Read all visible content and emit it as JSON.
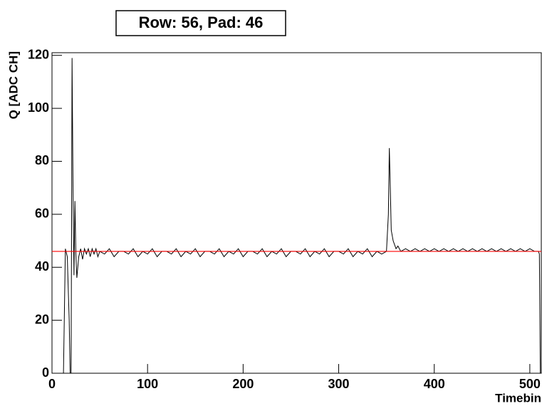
{
  "chart_data": {
    "type": "line",
    "title": "Row: 56, Pad: 46",
    "x_label": "Timebin",
    "y_label": "Q [ADC CH]",
    "x": [
      0,
      12,
      14,
      16,
      18,
      19,
      20,
      21,
      22,
      23,
      24,
      25,
      26,
      28,
      30,
      32,
      34,
      36,
      38,
      40,
      42,
      44,
      46,
      48,
      50,
      55,
      60,
      65,
      70,
      75,
      80,
      85,
      90,
      95,
      100,
      105,
      110,
      115,
      120,
      125,
      130,
      135,
      140,
      145,
      150,
      155,
      160,
      165,
      170,
      175,
      180,
      185,
      190,
      195,
      200,
      205,
      210,
      215,
      220,
      225,
      230,
      235,
      240,
      245,
      250,
      255,
      260,
      265,
      270,
      275,
      280,
      285,
      290,
      295,
      300,
      305,
      310,
      315,
      320,
      325,
      330,
      335,
      340,
      345,
      350,
      352,
      353,
      354,
      355,
      357,
      360,
      362,
      365,
      370,
      375,
      380,
      385,
      390,
      395,
      400,
      405,
      410,
      415,
      420,
      425,
      430,
      435,
      440,
      445,
      450,
      455,
      460,
      465,
      470,
      475,
      480,
      485,
      490,
      495,
      500,
      505,
      509,
      510,
      511
    ],
    "series": [
      {
        "color": "#000000",
        "values": [
          0,
          0,
          47,
          44,
          20,
          0,
          0,
          119,
          70,
          37,
          65,
          45,
          36,
          44,
          47,
          43,
          47,
          45,
          47,
          44,
          47,
          45,
          47,
          44,
          46,
          45,
          47,
          44,
          46,
          46,
          45,
          47,
          44,
          46,
          45,
          47,
          44,
          46,
          46,
          45,
          47,
          44,
          46,
          45,
          47,
          44,
          46,
          46,
          45,
          47,
          44,
          46,
          45,
          47,
          44,
          46,
          46,
          45,
          47,
          44,
          46,
          45,
          47,
          44,
          46,
          46,
          45,
          47,
          44,
          46,
          45,
          47,
          44,
          46,
          46,
          45,
          47,
          44,
          46,
          45,
          47,
          44,
          46,
          45,
          46,
          60,
          85,
          70,
          54,
          50,
          47,
          48,
          46,
          47,
          46,
          47,
          46,
          47,
          46,
          47,
          46,
          47,
          46,
          47,
          46,
          47,
          46,
          47,
          46,
          47,
          46,
          47,
          46,
          47,
          46,
          47,
          46,
          47,
          46,
          47,
          46,
          46,
          45,
          0
        ]
      }
    ],
    "hline": {
      "value": 46,
      "color": "#ff0000"
    },
    "xlim": [
      0,
      512
    ],
    "ylim": [
      0,
      121
    ],
    "xticks": [
      0,
      100,
      200,
      300,
      400,
      500
    ],
    "yticks": [
      0,
      20,
      40,
      60,
      80,
      100,
      120
    ]
  }
}
